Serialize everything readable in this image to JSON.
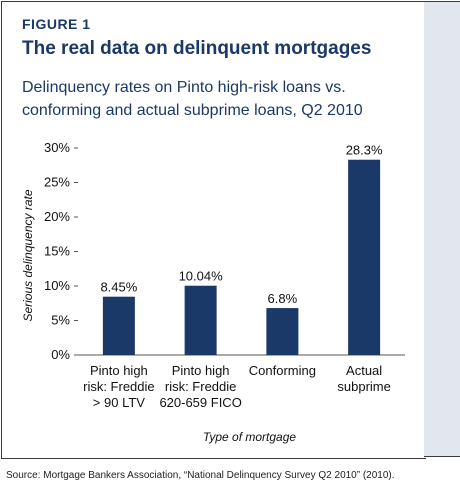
{
  "figure_label": "FIGURE 1",
  "title": "The real data on delinquent mortgages",
  "subtitle": "Delinquency rates on Pinto high-risk loans vs. conforming and actual subprime loans, Q2 2010",
  "source": "Source: Mortgage Bankers Association, “National Delinquency Survey Q2 2010” (2010).",
  "colors": {
    "bar": "#1a3868",
    "title": "#1a3868",
    "panel": "#e1e6ef"
  },
  "chart_data": {
    "type": "bar",
    "categories": [
      [
        "Pinto high",
        "risk: Freddie",
        "> 90 LTV"
      ],
      [
        "Pinto high",
        "risk: Freddie",
        "620-659 FICO"
      ],
      [
        "Conforming"
      ],
      [
        "Actual",
        "subprime"
      ]
    ],
    "values": [
      8.45,
      10.04,
      6.8,
      28.3
    ],
    "value_labels": [
      "8.45%",
      "10.04%",
      "6.8%",
      "28.3%"
    ],
    "xlabel": "Type of mortgage",
    "ylabel": "Serious delinquency rate",
    "ylim": [
      0,
      30
    ],
    "yticks": [
      0,
      5,
      10,
      15,
      20,
      25,
      30
    ],
    "ytick_labels": [
      "0%",
      "5%",
      "10%",
      "15%",
      "20%",
      "25%",
      "30%"
    ],
    "grid": false,
    "legend": "none"
  }
}
